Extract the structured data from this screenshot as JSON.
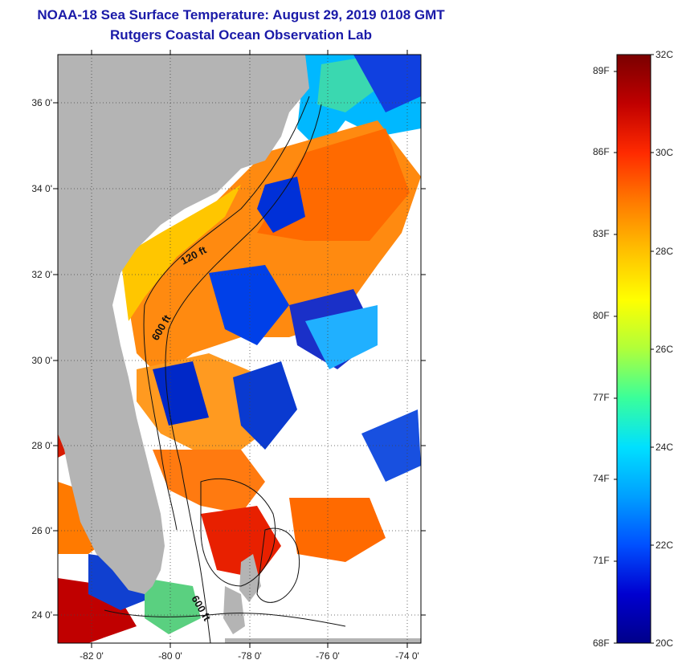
{
  "title": {
    "line1": "NOAA-18 Sea Surface Temperature:  August 29, 2019 0108 GMT",
    "line2": "Rutgers Coastal Ocean Observation Lab"
  },
  "map": {
    "land_color": "#b4b4b4",
    "latitude_labels": [
      "36 0'",
      "34 0'",
      "32 0'",
      "30 0'",
      "28 0'",
      "26 0'",
      "24 0'"
    ],
    "longitude_labels": [
      "-82 0'",
      "-80 0'",
      "-78 0'",
      "-76 0'",
      "-74 0'"
    ],
    "contour_labels": [
      "120 ft",
      "600 ft",
      "600 ft"
    ]
  },
  "colorbar": {
    "fahrenheit_labels": [
      "89F",
      "86F",
      "83F",
      "80F",
      "77F",
      "74F",
      "71F",
      "68F"
    ],
    "celsius_labels": [
      "32C",
      "30C",
      "28C",
      "26C",
      "24C",
      "22C",
      "20C"
    ],
    "colors": [
      "#7a0000",
      "#c00000",
      "#ff2a00",
      "#ff7a00",
      "#ffc000",
      "#ffff00",
      "#b0ff3a",
      "#3aff9a",
      "#00e0ff",
      "#00a0ff",
      "#0050ff",
      "#0000d0",
      "#00008a"
    ]
  }
}
